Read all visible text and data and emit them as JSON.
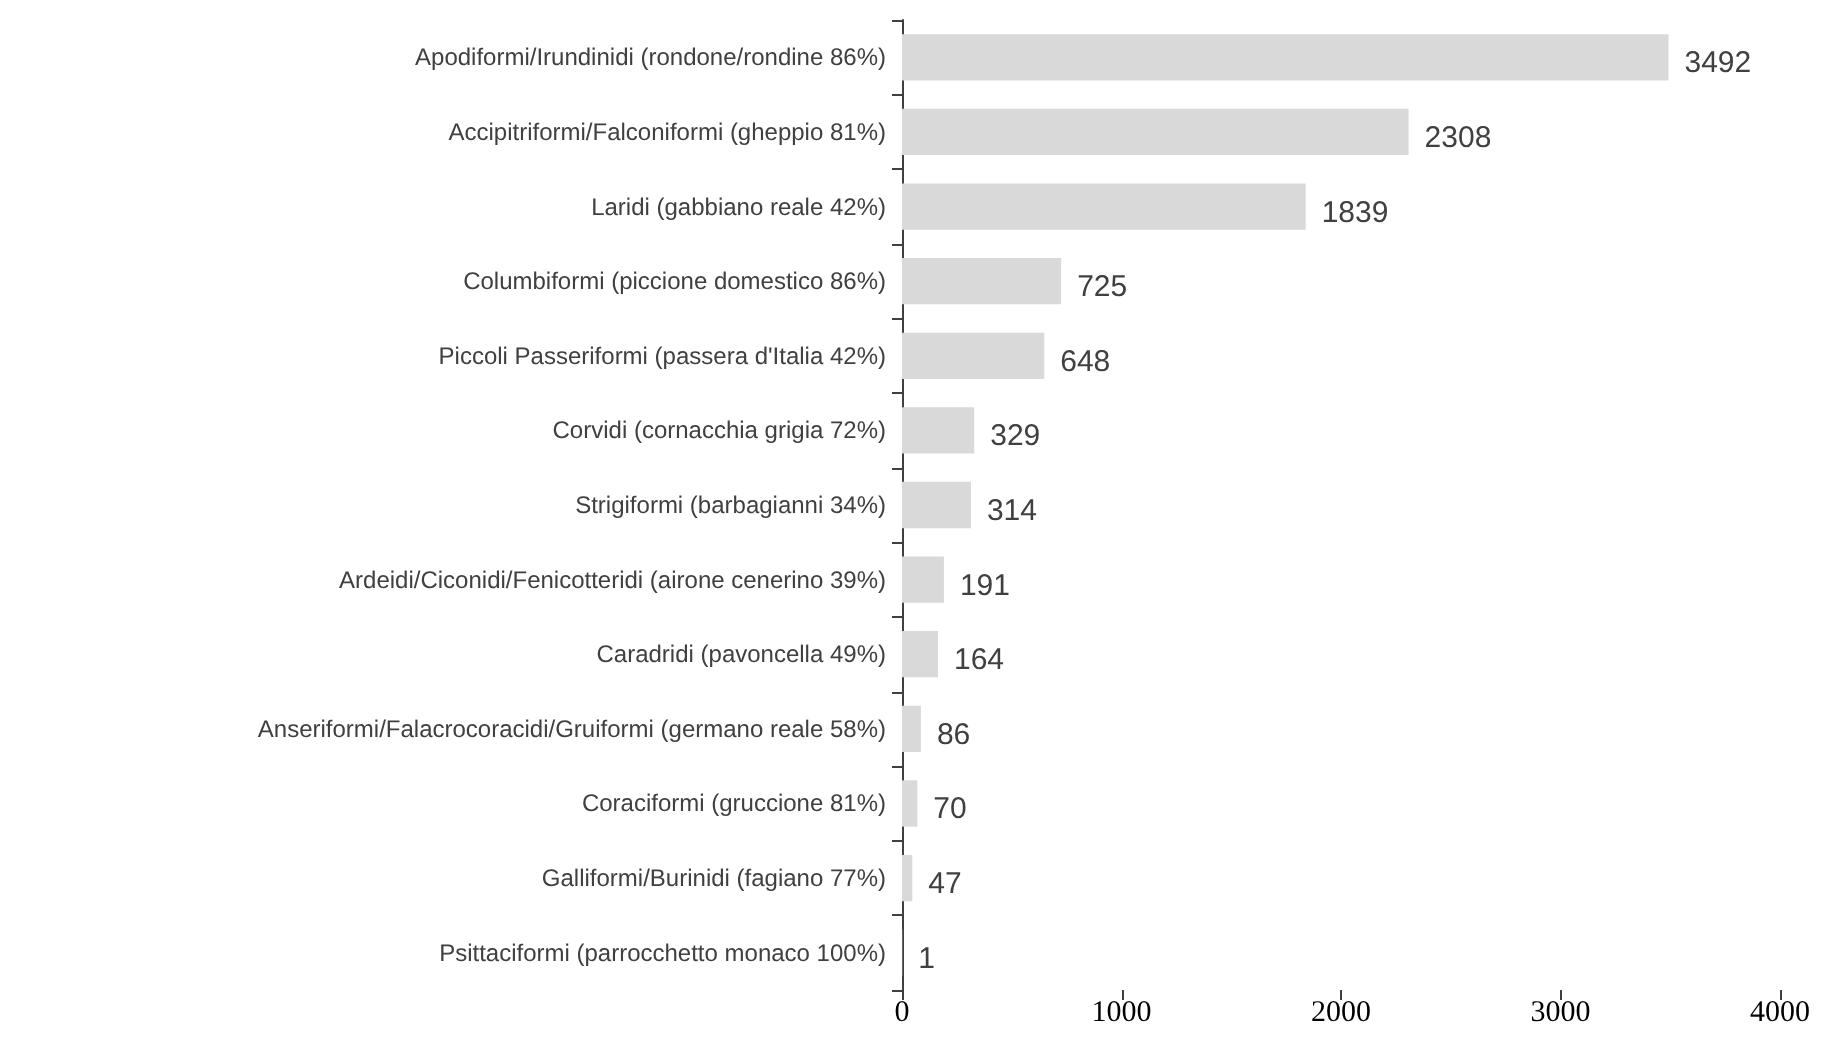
{
  "chart_data": {
    "type": "bar",
    "orientation": "horizontal",
    "categories": [
      "Apodiformi/Irundinidi (rondone/rondine 86%)",
      "Accipitriformi/Falconiformi (gheppio 81%)",
      "Laridi (gabbiano reale 42%)",
      "Columbiformi (piccione domestico 86%)",
      "Piccoli Passeriformi (passera d'Italia 42%)",
      "Corvidi (cornacchia grigia 72%)",
      "Strigiformi (barbagianni 34%)",
      "Ardeidi/Ciconidi/Fenicotteridi (airone cenerino 39%)",
      "Caradridi (pavoncella 49%)",
      "Anseriformi/Falacrocoracidi/Gruiformi (germano reale 58%)",
      "Coraciformi (gruccione 81%)",
      "Galliformi/Burinidi (fagiano 77%)",
      "Psittaciformi (parrocchetto monaco 100%)"
    ],
    "values": [
      3492,
      2308,
      1839,
      725,
      648,
      329,
      314,
      191,
      164,
      86,
      70,
      47,
      1
    ],
    "color": "#d9d9d9",
    "xlim": [
      0,
      4000
    ],
    "xticks": [
      0,
      1000,
      2000,
      3000,
      4000
    ],
    "data_labels": true
  }
}
